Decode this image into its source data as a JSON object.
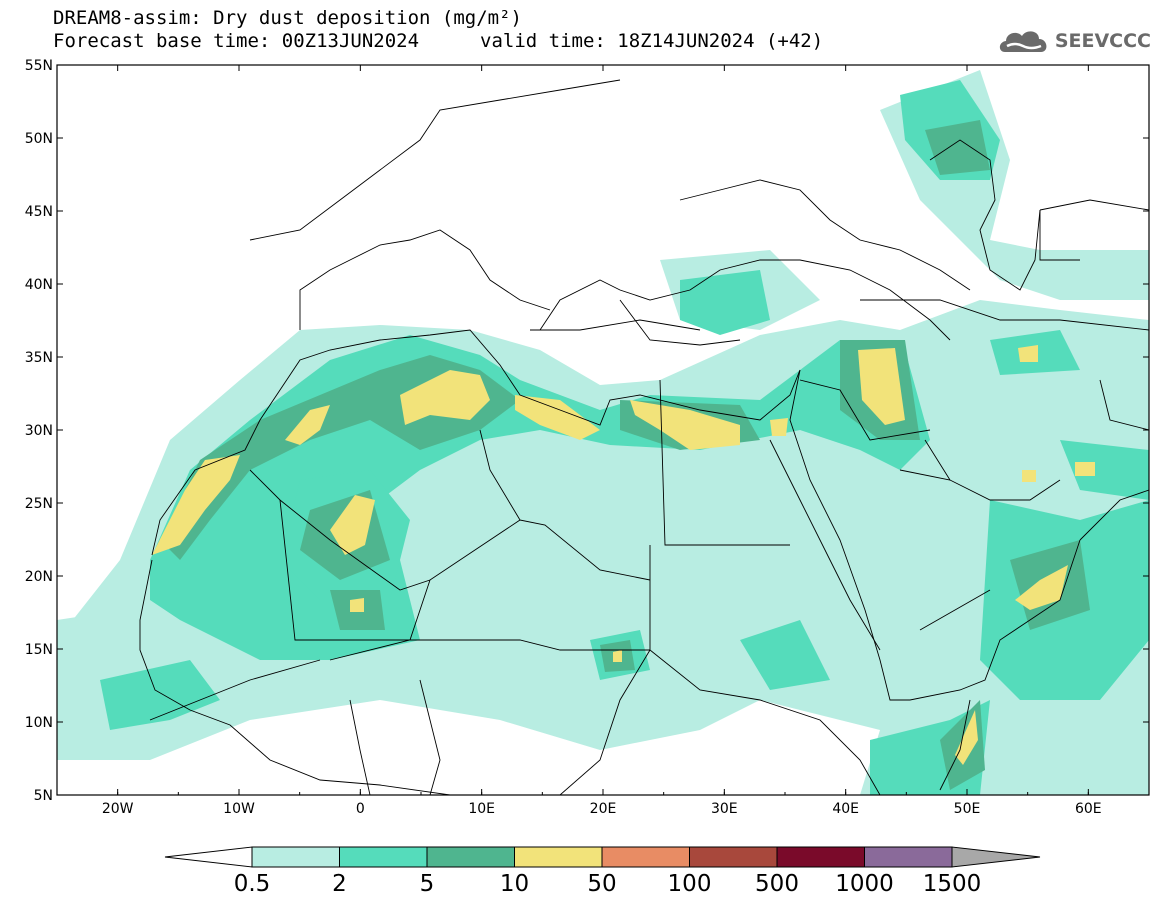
{
  "header": {
    "title": "DREAM8-assim: Dry dust deposition (mg/m²)",
    "base_time": "Forecast base time: 00Z13JUN2024",
    "valid_time": "valid time: 18Z14JUN2024 (+42)"
  },
  "logo": {
    "text": "SEEVCCC",
    "icon": "cloud-icon"
  },
  "map": {
    "lon_range": [
      -25,
      65
    ],
    "lat_range": [
      5,
      55
    ],
    "lat_labels": [
      "55N",
      "50N",
      "45N",
      "40N",
      "35N",
      "30N",
      "25N",
      "20N",
      "15N",
      "10N",
      "5N"
    ],
    "lon_labels": [
      "20W",
      "10W",
      "0",
      "10E",
      "20E",
      "30E",
      "40E",
      "50E",
      "60E"
    ]
  },
  "colorbar": {
    "labels": [
      "0.5",
      "2",
      "5",
      "10",
      "50",
      "100",
      "500",
      "1000",
      "1500"
    ],
    "colors": [
      "#ffffff",
      "#b8ede2",
      "#55dcbb",
      "#4fb58f",
      "#f2e37a",
      "#e88c64",
      "#a8483c",
      "#7a0a2a",
      "#8a6a9a",
      "#a8a8a8"
    ]
  }
}
